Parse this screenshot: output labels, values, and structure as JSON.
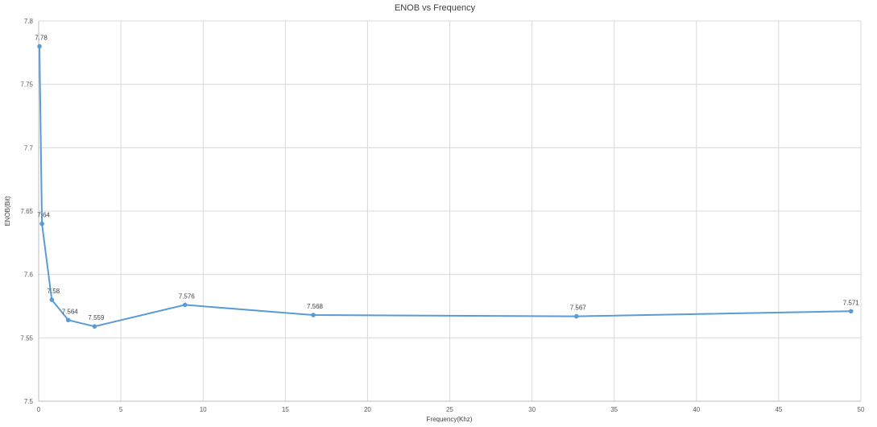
{
  "chart_data": {
    "type": "line",
    "title": "ENOB vs Frequency",
    "xlabel": "Frequency(Khz)",
    "ylabel": "ENOB(Bit)",
    "xlim": [
      0,
      50
    ],
    "ylim": [
      7.5,
      7.8
    ],
    "x_ticks": [
      0,
      5,
      10,
      15,
      20,
      25,
      30,
      35,
      40,
      45,
      50
    ],
    "y_ticks": [
      7.5,
      7.55,
      7.6,
      7.65,
      7.7,
      7.75,
      7.8
    ],
    "grid": true,
    "legend": "none",
    "series": [
      {
        "color": "#5b9bd5",
        "points": [
          {
            "x": 0.05,
            "y": 7.78,
            "label": "7.78"
          },
          {
            "x": 0.2,
            "y": 7.64,
            "label": "7.64"
          },
          {
            "x": 0.8,
            "y": 7.58,
            "label": "7.58"
          },
          {
            "x": 1.8,
            "y": 7.564,
            "label": "7.564"
          },
          {
            "x": 3.4,
            "y": 7.559,
            "label": "7.559"
          },
          {
            "x": 8.9,
            "y": 7.576,
            "label": "7.576"
          },
          {
            "x": 16.7,
            "y": 7.568,
            "label": "7.568"
          },
          {
            "x": 32.7,
            "y": 7.567,
            "label": "7.567"
          },
          {
            "x": 49.4,
            "y": 7.571,
            "label": "7.571"
          }
        ]
      }
    ]
  }
}
